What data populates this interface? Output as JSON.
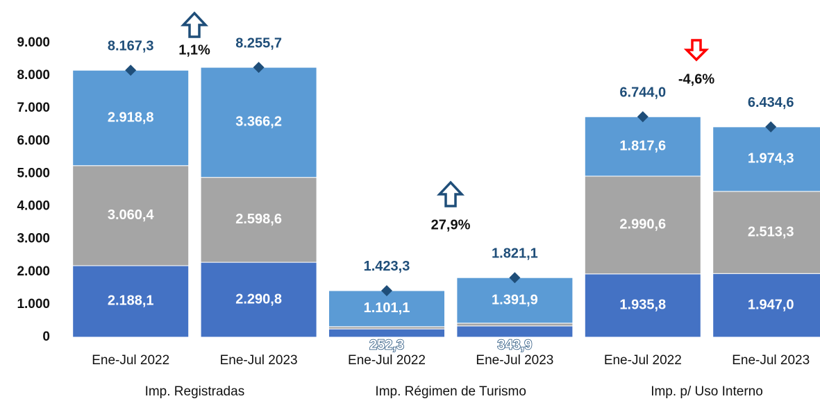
{
  "chart_data": {
    "type": "stacked-bar",
    "categories": [
      "Ene-Jul 2022",
      "Ene-Jul 2023",
      "Ene-Jul 2022",
      "Ene-Jul 2023",
      "Ene-Jul 2022",
      "Ene-Jul 2023"
    ],
    "groups": [
      "Imp. Registradas",
      "Imp. Régimen de Turismo",
      "Imp. p/ Uso Interno"
    ],
    "series": [
      {
        "color": "#4472c4",
        "values": [
          2188.1,
          2290.8,
          252.3,
          343.9,
          1935.8,
          1947.0
        ],
        "value_labels": [
          "2.188,1",
          "2.290,8",
          "252,3",
          "343,9",
          "1.935,8",
          "1.947,0"
        ]
      },
      {
        "color": "#a5a5a5",
        "values": [
          3060.4,
          2598.6,
          69.9,
          85.3,
          2990.6,
          2513.3
        ],
        "value_labels": [
          "3.060,4",
          "2.598,6",
          null,
          null,
          "2.990,6",
          "2.513,3"
        ]
      },
      {
        "color": "#5b9bd5",
        "values": [
          2918.8,
          3366.2,
          1101.1,
          1391.9,
          1817.6,
          1974.3
        ],
        "value_labels": [
          "2.918,8",
          "3.366,2",
          "1.101,1",
          "1.391,9",
          "1.817,6",
          "1.974,3"
        ]
      }
    ],
    "totals": {
      "color": "#1f4e79",
      "values": [
        8167.3,
        8255.7,
        1423.3,
        1821.1,
        6744.0,
        6434.6
      ],
      "value_labels": [
        "8.167,3",
        "8.255,7",
        "1.423,3",
        "1.821,1",
        "6.744,0",
        "6.434,6"
      ]
    },
    "annotations": [
      {
        "text": "1,1%",
        "direction": "up",
        "color": "#1f4e79"
      },
      {
        "text": "27,9%",
        "direction": "up",
        "color": "#1f4e79"
      },
      {
        "text": "-4,6%",
        "direction": "down",
        "color": "#ff0000"
      }
    ],
    "ylim": [
      0,
      9000
    ],
    "yticks": [
      0,
      {
        "value": 1000,
        "label": "1.000"
      },
      {
        "value": 2000,
        "label": "2.000"
      },
      {
        "value": 3000,
        "label": "3.000"
      },
      {
        "value": 4000,
        "label": "4.000"
      },
      {
        "value": 5000,
        "label": "5.000"
      },
      {
        "value": 6000,
        "label": "6.000"
      },
      {
        "value": 7000,
        "label": "7.000"
      },
      {
        "value": 8000,
        "label": "8.000"
      },
      {
        "value": 9000,
        "label": "9.000"
      }
    ]
  }
}
